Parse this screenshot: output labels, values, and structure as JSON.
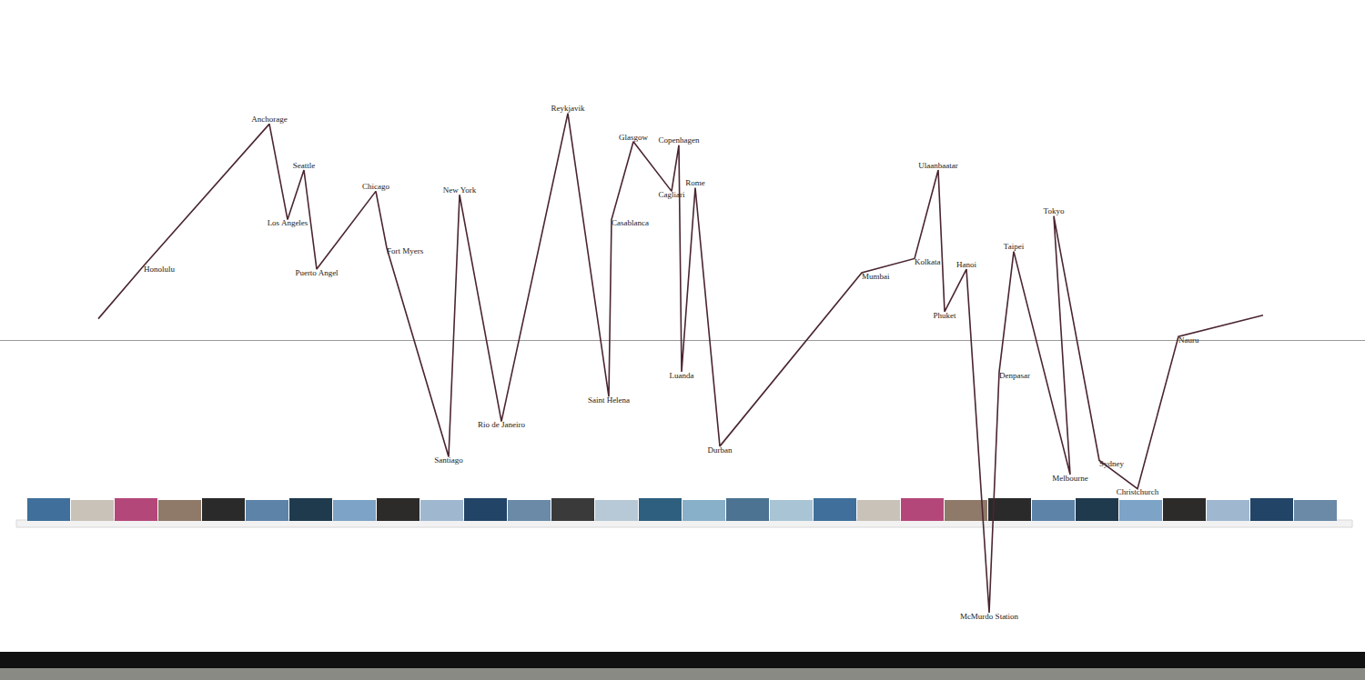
{
  "chart_data": {
    "type": "line",
    "x": [
      108,
      158,
      296,
      316,
      334,
      348,
      413,
      425,
      493,
      505,
      551,
      624,
      669,
      672,
      696,
      738,
      746,
      749,
      764,
      791,
      947,
      1005,
      1031,
      1038,
      1062,
      1087,
      1098,
      1114,
      1176,
      1158,
      1208,
      1250,
      1295,
      1388
    ],
    "values": [
      6,
      21,
      61,
      34,
      48,
      20,
      42,
      26,
      -33,
      41,
      -23,
      64,
      -16,
      34,
      56,
      42,
      55,
      -9,
      43,
      -30,
      19,
      23,
      48,
      8,
      20,
      -77,
      -9,
      25,
      -38,
      35,
      -34,
      -42,
      1,
      7
    ],
    "point_labels": [
      null,
      "Honolulu",
      "Anchorage",
      "Los Angeles",
      "Seattle",
      "Puerto Angel",
      "Chicago",
      "Fort Myers",
      "Santiago",
      "New York",
      "Rio de Janeiro",
      "Reykjavik",
      "Saint Helena",
      "Casablanca",
      "Glasgow",
      "Cagliari",
      "Copenhagen",
      "Luanda",
      "Rome",
      "Durban",
      "Mumbai",
      "Kolkata",
      "Ulaanbaatar",
      "Phuket",
      "Hanoi",
      "McMurdo Station",
      "Denpasar",
      "Taipei",
      "Melbourne",
      "Tokyo",
      "Sydney",
      "Christchurch",
      "Nauru",
      null
    ],
    "color": "#4a2630",
    "xlim": [
      0,
      1500
    ],
    "ylim": [
      -96,
      96
    ],
    "xticks": [],
    "yticks": [],
    "tick_labels": false,
    "grid": false
  }
}
